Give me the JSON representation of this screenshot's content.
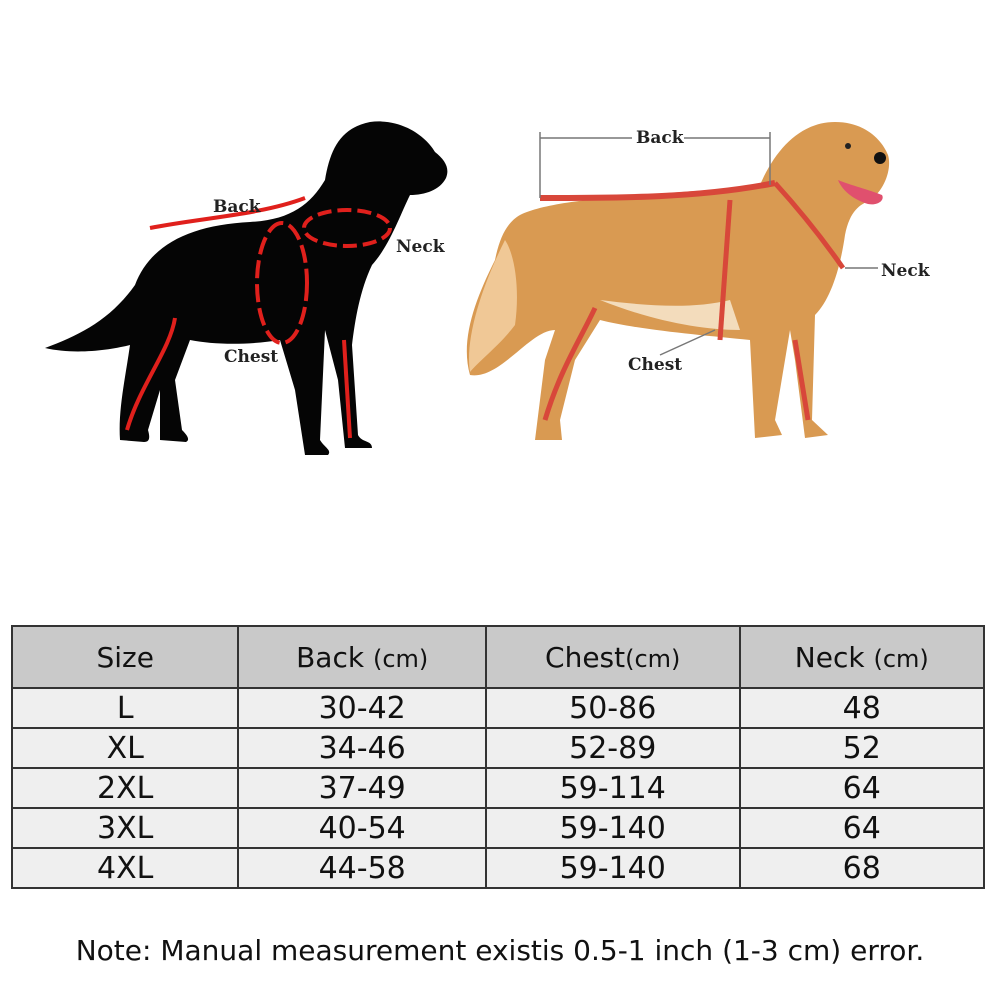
{
  "diagram": {
    "left_dog_labels": {
      "back": "Back",
      "neck": "Neck",
      "chest": "Chest"
    },
    "right_dog_labels": {
      "back": "Back",
      "neck": "Neck",
      "chest": "Chest"
    },
    "measure_color": "#e0201c"
  },
  "table": {
    "headers": [
      {
        "main": "Size",
        "unit": ""
      },
      {
        "main": "Back",
        "unit": "(cm)"
      },
      {
        "main": "Chest",
        "unit": "(cm)"
      },
      {
        "main": "Neck",
        "unit": "(cm)"
      }
    ],
    "rows": [
      [
        "L",
        "30-42",
        "50-86",
        "48"
      ],
      [
        "XL",
        "34-46",
        "52-89",
        "52"
      ],
      [
        "2XL",
        "37-49",
        "59-114",
        "64"
      ],
      [
        "3XL",
        "40-54",
        "59-140",
        "64"
      ],
      [
        "4XL",
        "44-58",
        "59-140",
        "68"
      ]
    ]
  },
  "note": "Note: Manual measurement existis 0.5-1 inch (1-3 cm) error."
}
